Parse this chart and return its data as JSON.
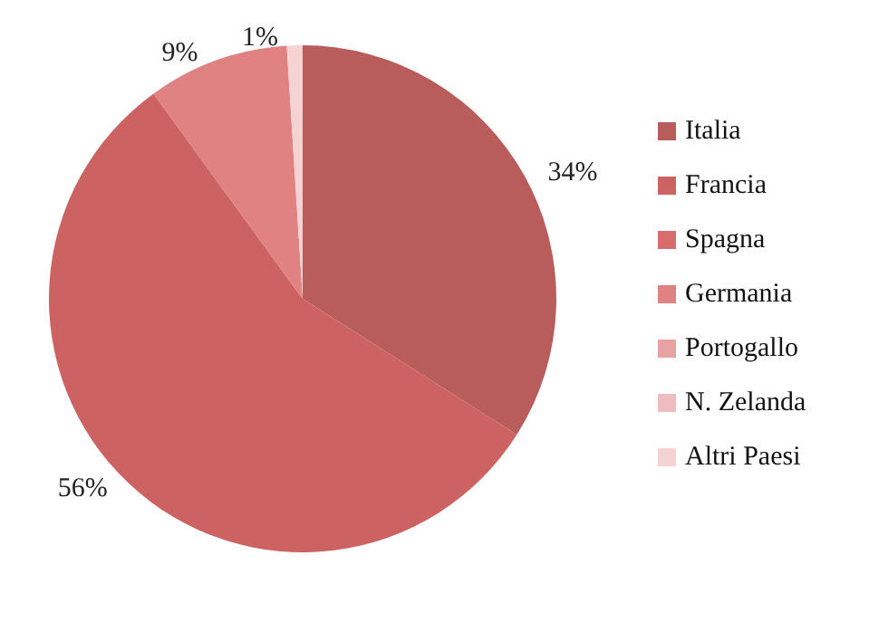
{
  "chart_data": {
    "type": "pie",
    "categories": [
      "Italia",
      "Francia",
      "Spagna",
      "Germania",
      "Portogallo",
      "N. Zelanda",
      "Altri Paesi"
    ],
    "values": [
      34,
      56,
      0,
      9,
      0,
      0,
      1
    ],
    "colors": [
      "#b85c5c",
      "#cc6262",
      "#d96c6c",
      "#e08282",
      "#e8a2a2",
      "#efbdbd",
      "#f5d3d3"
    ],
    "value_labels": [
      "34%",
      "56%",
      null,
      "9%",
      null,
      null,
      "1%"
    ],
    "legend": "right"
  }
}
